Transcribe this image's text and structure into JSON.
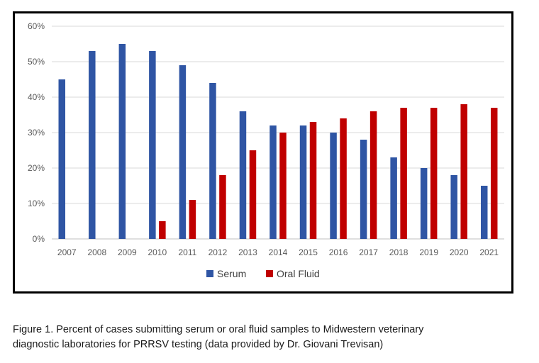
{
  "chart_data": {
    "type": "bar",
    "categories": [
      "2007",
      "2008",
      "2009",
      "2010",
      "2011",
      "2012",
      "2013",
      "2014",
      "2015",
      "2016",
      "2017",
      "2018",
      "2019",
      "2020",
      "2021"
    ],
    "series": [
      {
        "name": "Serum",
        "color": "#2F55A4",
        "values": [
          45,
          53,
          55,
          53,
          49,
          44,
          36,
          32,
          32,
          30,
          28,
          23,
          20,
          18,
          15
        ]
      },
      {
        "name": "Oral Fluid",
        "color": "#C00000",
        "values": [
          0,
          0,
          0,
          5,
          11,
          18,
          25,
          30,
          33,
          34,
          36,
          37,
          37,
          38,
          37
        ]
      }
    ],
    "ylim": [
      0,
      60
    ],
    "yticks": [
      0,
      10,
      20,
      30,
      40,
      50,
      60
    ],
    "ytick_suffix": "%",
    "grid": true,
    "legend": "bottom",
    "title": "",
    "xlabel": "",
    "ylabel": ""
  },
  "caption": {
    "line1": "Figure 1.  Percent of cases submitting serum or oral fluid samples to Midwestern veterinary",
    "line2": "diagnostic laboratories for PRRSV testing (data provided by Dr. Giovani Trevisan)"
  }
}
